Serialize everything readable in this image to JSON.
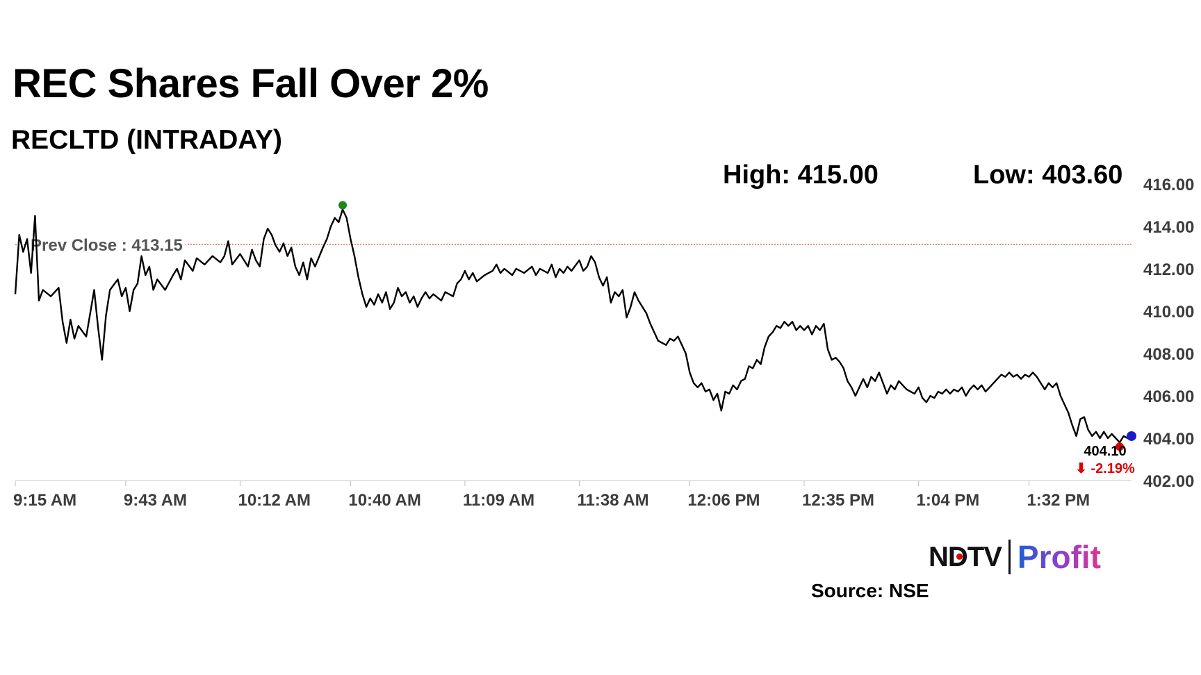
{
  "header": {
    "title": "REC Shares Fall Over 2%",
    "subtitle": "RECLTD (INTRADAY)",
    "high_text": "High: 415.00",
    "low_text": "Low: 403.60"
  },
  "footer": {
    "logo_ndtv": "NDTV",
    "logo_profit": "Profit",
    "source": "Source: NSE"
  },
  "colors": {
    "line": "#000000",
    "prev_close": "#b03a2e",
    "high_marker": "#1a8a1a",
    "low_marker": "#e00000",
    "last_marker": "#1a1acc",
    "change_negative": "#e00000"
  },
  "chart_data": {
    "type": "line",
    "xlabel": "",
    "ylabel": "",
    "x_unit": "time",
    "xlim": [
      "9:15 AM",
      "1:58 PM"
    ],
    "ylim": [
      402,
      416
    ],
    "y_ticks": [
      "416.00",
      "414.00",
      "412.00",
      "410.00",
      "408.00",
      "406.00",
      "404.00",
      "402.00"
    ],
    "x_ticks": [
      "9:15 AM",
      "9:43 AM",
      "10:12 AM",
      "10:40 AM",
      "11:09 AM",
      "11:38 AM",
      "12:06 PM",
      "12:35 PM",
      "1:04 PM",
      "1:32 PM"
    ],
    "prev_close": {
      "label": "Prev Close : 413.15",
      "value": 413.15
    },
    "high": {
      "time": "10:38 AM",
      "value": 415.0
    },
    "low": {
      "time": "1:55 PM",
      "value": 403.6
    },
    "last": {
      "time": "1:58 PM",
      "value": 404.1,
      "price_label": "404.10",
      "change_label": "⬇ -2.19%"
    },
    "grid": false,
    "legend": "none",
    "series": [
      {
        "points": [
          [
            "9:15 AM",
            410.8
          ],
          [
            "9:16 AM",
            413.6
          ],
          [
            "9:17 AM",
            412.8
          ],
          [
            "9:18 AM",
            413.4
          ],
          [
            "9:19 AM",
            411.8
          ],
          [
            "9:20 AM",
            414.5
          ],
          [
            "9:21 AM",
            410.5
          ],
          [
            "9:22 AM",
            411.0
          ],
          [
            "9:24 AM",
            410.7
          ],
          [
            "9:26 AM",
            411.1
          ],
          [
            "9:27 AM",
            409.5
          ],
          [
            "9:28 AM",
            408.5
          ],
          [
            "9:29 AM",
            409.6
          ],
          [
            "9:30 AM",
            408.7
          ],
          [
            "9:31 AM",
            409.3
          ],
          [
            "9:33 AM",
            408.8
          ],
          [
            "9:35 AM",
            411.0
          ],
          [
            "9:36 AM",
            409.2
          ],
          [
            "9:37 AM",
            407.7
          ],
          [
            "9:38 AM",
            409.8
          ],
          [
            "9:39 AM",
            411.0
          ],
          [
            "9:41 AM",
            411.5
          ],
          [
            "9:42 AM",
            410.7
          ],
          [
            "9:43 AM",
            411.1
          ],
          [
            "9:44 AM",
            410.0
          ],
          [
            "9:45 AM",
            411.0
          ],
          [
            "9:46 AM",
            411.3
          ],
          [
            "9:47 AM",
            412.6
          ],
          [
            "9:48 AM",
            411.7
          ],
          [
            "9:49 AM",
            412.1
          ],
          [
            "9:50 AM",
            411.0
          ],
          [
            "9:51 AM",
            411.5
          ],
          [
            "9:53 AM",
            411.0
          ],
          [
            "9:55 AM",
            411.7
          ],
          [
            "9:56 AM",
            412.0
          ],
          [
            "9:57 AM",
            411.5
          ],
          [
            "9:58 AM",
            412.4
          ],
          [
            "10:00 AM",
            411.9
          ],
          [
            "10:01 AM",
            412.5
          ],
          [
            "10:03 AM",
            412.2
          ],
          [
            "10:05 AM",
            412.6
          ],
          [
            "10:07 AM",
            412.3
          ],
          [
            "10:08 AM",
            412.6
          ],
          [
            "10:09 AM",
            413.3
          ],
          [
            "10:10 AM",
            412.2
          ],
          [
            "10:12 AM",
            412.7
          ],
          [
            "10:14 AM",
            412.1
          ],
          [
            "10:15 AM",
            412.9
          ],
          [
            "10:16 AM",
            412.4
          ],
          [
            "10:17 AM",
            412.1
          ],
          [
            "10:18 AM",
            413.4
          ],
          [
            "10:19 AM",
            413.9
          ],
          [
            "10:20 AM",
            413.6
          ],
          [
            "10:21 AM",
            413.1
          ],
          [
            "10:22 AM",
            412.8
          ],
          [
            "10:23 AM",
            413.2
          ],
          [
            "10:24 AM",
            412.6
          ],
          [
            "10:25 AM",
            413.0
          ],
          [
            "10:26 AM",
            412.1
          ],
          [
            "10:27 AM",
            411.7
          ],
          [
            "10:28 AM",
            412.3
          ],
          [
            "10:29 AM",
            411.5
          ],
          [
            "10:30 AM",
            412.5
          ],
          [
            "10:31 AM",
            412.1
          ],
          [
            "10:33 AM",
            413.0
          ],
          [
            "10:34 AM",
            413.4
          ],
          [
            "10:35 AM",
            414.0
          ],
          [
            "10:36 AM",
            414.4
          ],
          [
            "10:37 AM",
            414.2
          ],
          [
            "10:38 AM",
            414.8
          ],
          [
            "10:39 AM",
            414.4
          ],
          [
            "10:40 AM",
            413.4
          ],
          [
            "10:41 AM",
            412.6
          ],
          [
            "10:42 AM",
            411.6
          ],
          [
            "10:43 AM",
            410.8
          ],
          [
            "10:44 AM",
            410.2
          ],
          [
            "10:45 AM",
            410.6
          ],
          [
            "10:46 AM",
            410.3
          ],
          [
            "10:47 AM",
            410.8
          ],
          [
            "10:48 AM",
            410.4
          ],
          [
            "10:49 AM",
            410.9
          ],
          [
            "10:50 AM",
            410.1
          ],
          [
            "10:51 AM",
            410.4
          ],
          [
            "10:52 AM",
            411.1
          ],
          [
            "10:53 AM",
            410.7
          ],
          [
            "10:54 AM",
            410.9
          ],
          [
            "10:55 AM",
            410.4
          ],
          [
            "10:56 AM",
            410.7
          ],
          [
            "10:57 AM",
            410.2
          ],
          [
            "10:58 AM",
            410.6
          ],
          [
            "10:59 AM",
            410.9
          ],
          [
            "11:00 AM",
            410.6
          ],
          [
            "11:01 AM",
            410.8
          ],
          [
            "11:03 AM",
            410.5
          ],
          [
            "11:04 AM",
            410.9
          ],
          [
            "11:06 AM",
            410.7
          ],
          [
            "11:07 AM",
            411.3
          ],
          [
            "11:08 AM",
            411.5
          ],
          [
            "11:09 AM",
            411.9
          ],
          [
            "11:10 AM",
            411.5
          ],
          [
            "11:11 AM",
            411.8
          ],
          [
            "11:12 AM",
            411.4
          ],
          [
            "11:14 AM",
            411.7
          ],
          [
            "11:16 AM",
            411.9
          ],
          [
            "11:17 AM",
            412.2
          ],
          [
            "11:18 AM",
            411.8
          ],
          [
            "11:19 AM",
            412.0
          ],
          [
            "11:21 AM",
            411.7
          ],
          [
            "11:22 AM",
            412.0
          ],
          [
            "11:24 AM",
            411.8
          ],
          [
            "11:26 AM",
            412.1
          ],
          [
            "11:27 AM",
            411.7
          ],
          [
            "11:28 AM",
            412.0
          ],
          [
            "11:30 AM",
            411.8
          ],
          [
            "11:31 AM",
            412.2
          ],
          [
            "11:32 AM",
            411.6
          ],
          [
            "11:33 AM",
            412.0
          ],
          [
            "11:34 AM",
            411.8
          ],
          [
            "11:35 AM",
            412.1
          ],
          [
            "11:36 AM",
            411.9
          ],
          [
            "11:38 AM",
            412.4
          ],
          [
            "11:39 AM",
            411.9
          ],
          [
            "11:40 AM",
            412.1
          ],
          [
            "11:41 AM",
            412.6
          ],
          [
            "11:42 AM",
            412.3
          ],
          [
            "11:43 AM",
            411.6
          ],
          [
            "11:44 AM",
            411.2
          ],
          [
            "11:45 AM",
            411.6
          ],
          [
            "11:46 AM",
            410.4
          ],
          [
            "11:47 AM",
            410.9
          ],
          [
            "11:48 AM",
            410.7
          ],
          [
            "11:49 AM",
            411.0
          ],
          [
            "11:50 AM",
            409.7
          ],
          [
            "11:51 AM",
            410.2
          ],
          [
            "11:52 AM",
            410.9
          ],
          [
            "11:53 AM",
            410.5
          ],
          [
            "11:54 AM",
            410.2
          ],
          [
            "11:55 AM",
            409.9
          ],
          [
            "11:56 AM",
            409.4
          ],
          [
            "11:57 AM",
            409.0
          ],
          [
            "11:58 AM",
            408.6
          ],
          [
            "11:59 AM",
            408.5
          ],
          [
            "12:00 PM",
            408.4
          ],
          [
            "12:01 PM",
            408.7
          ],
          [
            "12:02 PM",
            408.6
          ],
          [
            "12:03 PM",
            408.8
          ],
          [
            "12:04 PM",
            408.4
          ],
          [
            "12:05 PM",
            408.0
          ],
          [
            "12:06 PM",
            407.1
          ],
          [
            "12:07 PM",
            406.6
          ],
          [
            "12:08 PM",
            406.4
          ],
          [
            "12:09 PM",
            406.6
          ],
          [
            "12:10 PM",
            406.2
          ],
          [
            "12:11 PM",
            406.3
          ],
          [
            "12:12 PM",
            405.8
          ],
          [
            "12:13 PM",
            406.1
          ],
          [
            "12:14 PM",
            405.3
          ],
          [
            "12:15 PM",
            406.2
          ],
          [
            "12:16 PM",
            406.1
          ],
          [
            "12:17 PM",
            406.5
          ],
          [
            "12:18 PM",
            406.3
          ],
          [
            "12:19 PM",
            406.7
          ],
          [
            "12:20 PM",
            406.8
          ],
          [
            "12:21 PM",
            407.4
          ],
          [
            "12:22 PM",
            407.3
          ],
          [
            "12:23 PM",
            407.7
          ],
          [
            "12:24 PM",
            407.5
          ],
          [
            "12:25 PM",
            408.3
          ],
          [
            "12:26 PM",
            408.8
          ],
          [
            "12:27 PM",
            409.0
          ],
          [
            "12:28 PM",
            409.3
          ],
          [
            "12:29 PM",
            409.2
          ],
          [
            "12:30 PM",
            409.5
          ],
          [
            "12:31 PM",
            409.3
          ],
          [
            "12:32 PM",
            409.5
          ],
          [
            "12:33 PM",
            409.1
          ],
          [
            "12:34 PM",
            409.3
          ],
          [
            "12:35 PM",
            409.1
          ],
          [
            "12:36 PM",
            409.3
          ],
          [
            "12:37 PM",
            408.9
          ],
          [
            "12:38 PM",
            409.3
          ],
          [
            "12:39 PM",
            409.1
          ],
          [
            "12:40 PM",
            409.4
          ],
          [
            "12:41 PM",
            408.2
          ],
          [
            "12:42 PM",
            407.7
          ],
          [
            "12:43 PM",
            407.8
          ],
          [
            "12:44 PM",
            407.6
          ],
          [
            "12:45 PM",
            407.3
          ],
          [
            "12:46 PM",
            406.7
          ],
          [
            "12:47 PM",
            406.4
          ],
          [
            "12:48 PM",
            406.0
          ],
          [
            "12:49 PM",
            406.4
          ],
          [
            "12:50 PM",
            406.8
          ],
          [
            "12:51 PM",
            406.4
          ],
          [
            "12:52 PM",
            406.9
          ],
          [
            "12:53 PM",
            406.7
          ],
          [
            "12:54 PM",
            407.1
          ],
          [
            "12:55 PM",
            406.6
          ],
          [
            "12:56 PM",
            406.1
          ],
          [
            "12:57 PM",
            406.5
          ],
          [
            "12:58 PM",
            406.3
          ],
          [
            "12:59 PM",
            406.7
          ],
          [
            "1:00 PM",
            406.5
          ],
          [
            "1:01 PM",
            406.3
          ],
          [
            "1:02 PM",
            406.2
          ],
          [
            "1:03 PM",
            406.1
          ],
          [
            "1:04 PM",
            406.4
          ],
          [
            "1:05 PM",
            405.9
          ],
          [
            "1:06 PM",
            405.7
          ],
          [
            "1:07 PM",
            406.0
          ],
          [
            "1:08 PM",
            405.9
          ],
          [
            "1:09 PM",
            406.2
          ],
          [
            "1:10 PM",
            406.1
          ],
          [
            "1:11 PM",
            406.3
          ],
          [
            "1:12 PM",
            406.1
          ],
          [
            "1:13 PM",
            406.3
          ],
          [
            "1:14 PM",
            406.2
          ],
          [
            "1:15 PM",
            406.4
          ],
          [
            "1:16 PM",
            406.0
          ],
          [
            "1:17 PM",
            406.3
          ],
          [
            "1:18 PM",
            406.5
          ],
          [
            "1:19 PM",
            406.3
          ],
          [
            "1:20 PM",
            406.5
          ],
          [
            "1:21 PM",
            406.2
          ],
          [
            "1:22 PM",
            406.4
          ],
          [
            "1:23 PM",
            406.6
          ],
          [
            "1:24 PM",
            406.8
          ],
          [
            "1:25 PM",
            407.0
          ],
          [
            "1:26 PM",
            406.9
          ],
          [
            "1:27 PM",
            407.1
          ],
          [
            "1:28 PM",
            406.9
          ],
          [
            "1:29 PM",
            407.0
          ],
          [
            "1:30 PM",
            406.8
          ],
          [
            "1:31 PM",
            407.0
          ],
          [
            "1:32 PM",
            406.9
          ],
          [
            "1:33 PM",
            407.1
          ],
          [
            "1:34 PM",
            406.9
          ],
          [
            "1:35 PM",
            406.6
          ],
          [
            "1:36 PM",
            406.3
          ],
          [
            "1:37 PM",
            406.6
          ],
          [
            "1:38 PM",
            406.4
          ],
          [
            "1:39 PM",
            406.6
          ],
          [
            "1:40 PM",
            406.0
          ],
          [
            "1:41 PM",
            405.6
          ],
          [
            "1:42 PM",
            405.2
          ],
          [
            "1:43 PM",
            404.6
          ],
          [
            "1:44 PM",
            404.1
          ],
          [
            "1:45 PM",
            404.9
          ],
          [
            "1:46 PM",
            405.0
          ],
          [
            "1:47 PM",
            404.4
          ],
          [
            "1:48 PM",
            404.1
          ],
          [
            "1:49 PM",
            404.3
          ],
          [
            "1:50 PM",
            404.0
          ],
          [
            "1:51 PM",
            404.3
          ],
          [
            "1:52 PM",
            404.0
          ],
          [
            "1:53 PM",
            404.2
          ],
          [
            "1:54 PM",
            404.0
          ],
          [
            "1:55 PM",
            403.8
          ],
          [
            "1:56 PM",
            404.1
          ],
          [
            "1:57 PM",
            404.0
          ],
          [
            "1:58 PM",
            404.1
          ]
        ]
      }
    ]
  }
}
